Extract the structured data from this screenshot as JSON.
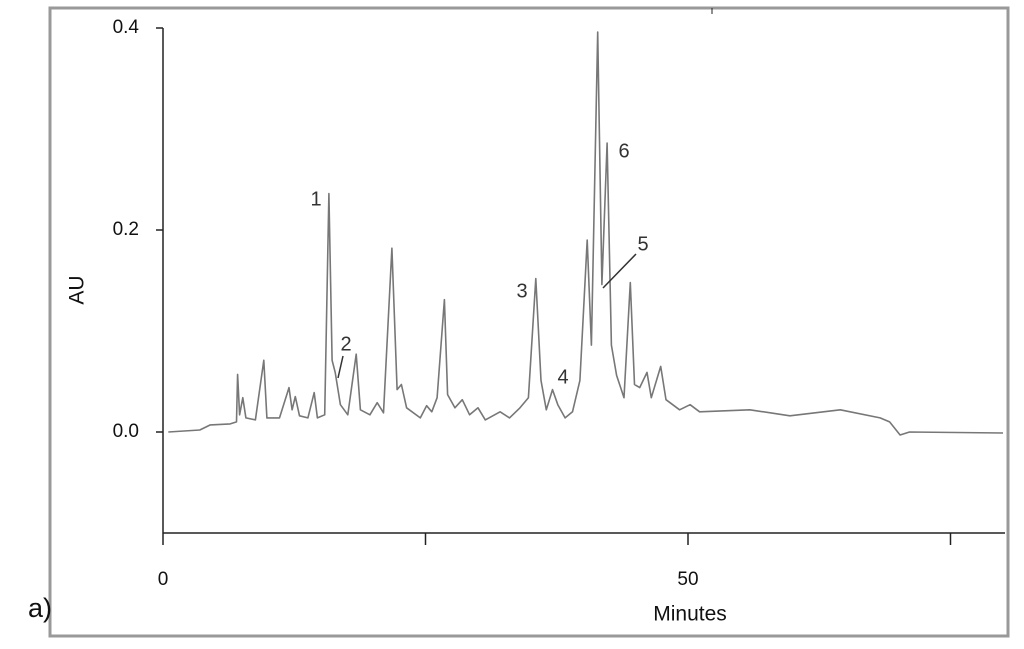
{
  "chart_data": {
    "type": "line",
    "panel_label": "a)",
    "x_label": "Minutes",
    "y_label": "AU",
    "xlim": [
      0,
      80
    ],
    "xticks": [
      0,
      50
    ],
    "xminor_ticks": [
      25,
      75
    ],
    "ylim": [
      -0.1,
      0.4
    ],
    "yticks": [
      {
        "value": 0,
        "label": "0.0"
      },
      0.2,
      0.4
    ],
    "color": "#777777",
    "annotations": [
      "1",
      "2",
      "3",
      "4",
      "5",
      "6"
    ],
    "x": [
      0.5,
      3.5,
      4.5,
      6.4,
      7.0,
      7.1,
      7.3,
      7.6,
      7.9,
      8.8,
      9.6,
      9.9,
      11.1,
      12.0,
      12.3,
      12.6,
      13.0,
      13.8,
      14.4,
      14.7,
      15.4,
      15.8,
      16.1,
      16.4,
      16.9,
      17.6,
      18.4,
      18.8,
      19.7,
      20.4,
      21.0,
      21.8,
      22.3,
      22.7,
      23.2,
      24.5,
      25.1,
      25.6,
      26.1,
      26.8,
      27.1,
      27.8,
      28.5,
      29.2,
      30.0,
      30.7,
      32.1,
      33.0,
      34.0,
      34.8,
      35.5,
      36.0,
      36.5,
      37.1,
      37.6,
      38.3,
      39.0,
      39.7,
      40.4,
      40.8,
      41.4,
      41.8,
      42.3,
      42.7,
      43.2,
      43.9,
      44.5,
      44.9,
      45.4,
      46.1,
      46.5,
      47.4,
      47.9,
      49.2,
      50.2,
      51.1,
      55.9,
      59.7,
      64.5,
      68.3,
      69.2,
      70.2,
      71.1,
      80.0
    ],
    "values": [
      0.0,
      0.002,
      0.007,
      0.008,
      0.01,
      0.057,
      0.017,
      0.034,
      0.014,
      0.012,
      0.071,
      0.014,
      0.014,
      0.044,
      0.022,
      0.035,
      0.016,
      0.014,
      0.039,
      0.014,
      0.017,
      0.236,
      0.071,
      0.059,
      0.027,
      0.017,
      0.077,
      0.022,
      0.017,
      0.029,
      0.019,
      0.182,
      0.042,
      0.047,
      0.024,
      0.014,
      0.026,
      0.02,
      0.034,
      0.131,
      0.037,
      0.024,
      0.032,
      0.017,
      0.024,
      0.012,
      0.02,
      0.014,
      0.024,
      0.034,
      0.152,
      0.051,
      0.022,
      0.042,
      0.027,
      0.014,
      0.02,
      0.051,
      0.19,
      0.086,
      0.396,
      0.146,
      0.286,
      0.086,
      0.056,
      0.034,
      0.148,
      0.047,
      0.044,
      0.059,
      0.034,
      0.065,
      0.032,
      0.022,
      0.027,
      0.02,
      0.022,
      0.016,
      0.022,
      0.014,
      0.01,
      -0.003,
      0.0,
      -0.001
    ]
  }
}
